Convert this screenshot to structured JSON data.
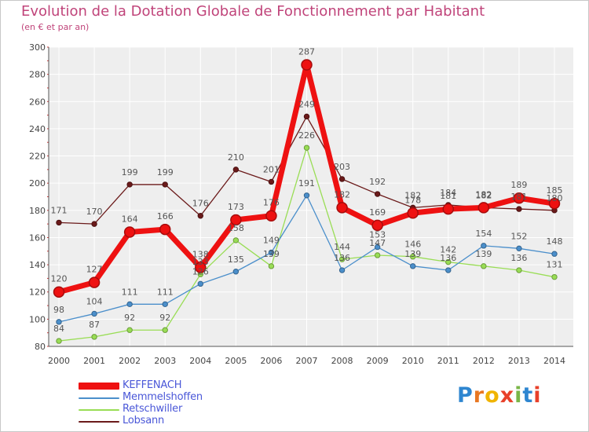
{
  "header": {
    "title": "Evolution de la Dotation Globale de Fonctionnement par Habitant",
    "subtitle": "(en € et par an)"
  },
  "logo": {
    "letters": [
      "P",
      "r",
      "o",
      "x",
      "i",
      "t",
      "i"
    ],
    "colors": [
      "#2e86d0",
      "#e87722",
      "#f0b400",
      "#e8402a",
      "#7ab648",
      "#2e86d0",
      "#e8402a"
    ]
  },
  "chart_data": {
    "type": "line",
    "title": "Evolution de la Dotation Globale de Fonctionnement par Habitant",
    "subtitle": "(en € et par an)",
    "xlabel": "",
    "ylabel": "",
    "ylim": [
      80,
      300
    ],
    "yticks": [
      80,
      100,
      120,
      140,
      160,
      180,
      200,
      220,
      240,
      260,
      280,
      300
    ],
    "grid": true,
    "legend_position": "bottom-left",
    "x": [
      "2000",
      "2001",
      "2002",
      "2003",
      "2004",
      "2005",
      "2006",
      "2007",
      "2008",
      "2009",
      "2010",
      "2011",
      "2012",
      "2013",
      "2014"
    ],
    "series": [
      {
        "name": "KEFFENACH",
        "color": "#ee1111",
        "values": [
          120,
          127,
          164,
          166,
          138,
          173,
          176,
          287,
          182,
          169,
          178,
          181,
          182,
          189,
          185
        ]
      },
      {
        "name": "Memmelshoffen",
        "color": "#4b8fcb",
        "values": [
          98,
          104,
          111,
          111,
          126,
          135,
          149,
          191,
          136,
          153,
          139,
          136,
          154,
          152,
          148
        ]
      },
      {
        "name": "Retschwiller",
        "color": "#99dd55",
        "values": [
          84,
          87,
          92,
          92,
          133,
          158,
          139,
          226,
          144,
          147,
          146,
          142,
          139,
          136,
          131
        ]
      },
      {
        "name": "Lobsann",
        "color": "#6b1a1a",
        "values": [
          171,
          170,
          199,
          199,
          176,
          210,
          201,
          249,
          203,
          192,
          182,
          184,
          182,
          181,
          180
        ]
      }
    ],
    "data_labels": {
      "KEFFENACH": [
        "120",
        "127",
        "164",
        "166",
        "138",
        "173",
        "176",
        "287",
        "182",
        "169",
        "178",
        "181",
        "182",
        "189",
        "185"
      ],
      "Memmelshoffen": [
        "98",
        "104",
        "111",
        "111",
        "126",
        "135",
        "149",
        "191",
        "136",
        "153",
        "139",
        "136",
        "154",
        "152",
        "148"
      ],
      "Retschwiller": [
        "84",
        "87",
        "92",
        "92",
        "133",
        "158",
        "139",
        "226",
        "144",
        "147",
        "146",
        "142",
        "139",
        "136",
        "131"
      ],
      "Lobsann": [
        "171",
        "170",
        "199",
        "199",
        "176",
        "210",
        "201",
        "249",
        "203",
        "192",
        "182",
        "184",
        "182",
        "181",
        "180"
      ]
    }
  }
}
